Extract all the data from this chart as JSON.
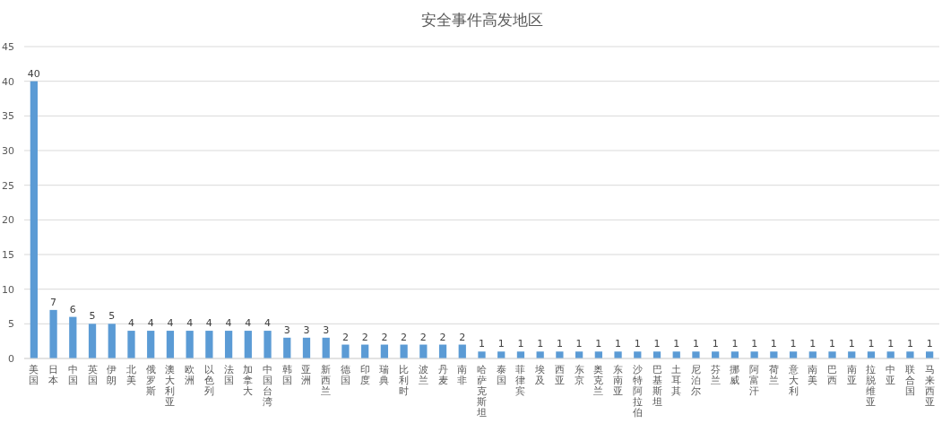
{
  "chart_data": {
    "type": "bar",
    "title": "安全事件高发地区",
    "categories": [
      "美国",
      "日本",
      "中国",
      "英国",
      "伊朗",
      "北美",
      "俄罗斯",
      "澳大利亚",
      "欧洲",
      "以色列",
      "法国",
      "加拿大",
      "中国台湾",
      "韩国",
      "亚洲",
      "新西兰",
      "德国",
      "印度",
      "瑞典",
      "比利时",
      "波兰",
      "丹麦",
      "南非",
      "哈萨克斯坦",
      "泰国",
      "菲律宾",
      "埃及",
      "西亚",
      "东京",
      "奥克兰",
      "东南亚",
      "沙特阿拉伯",
      "巴基斯坦",
      "土耳其",
      "尼泊尔",
      "芬兰",
      "挪威",
      "阿富汗",
      "荷兰",
      "意大利",
      "南美",
      "巴西",
      "南亚",
      "拉脱维亚",
      "中亚",
      "联合国",
      "马来西亚"
    ],
    "values": [
      40,
      7,
      6,
      5,
      5,
      4,
      4,
      4,
      4,
      4,
      4,
      4,
      4,
      3,
      3,
      3,
      2,
      2,
      2,
      2,
      2,
      2,
      2,
      1,
      1,
      1,
      1,
      1,
      1,
      1,
      1,
      1,
      1,
      1,
      1,
      1,
      1,
      1,
      1,
      1,
      1,
      1,
      1,
      1,
      1,
      1,
      1
    ],
    "color": "#5b9bd5",
    "ylim": [
      0,
      45
    ],
    "yticks": [
      0,
      5,
      10,
      15,
      20,
      25,
      30,
      35,
      40,
      45
    ],
    "grid": "y",
    "data_labels": true
  }
}
